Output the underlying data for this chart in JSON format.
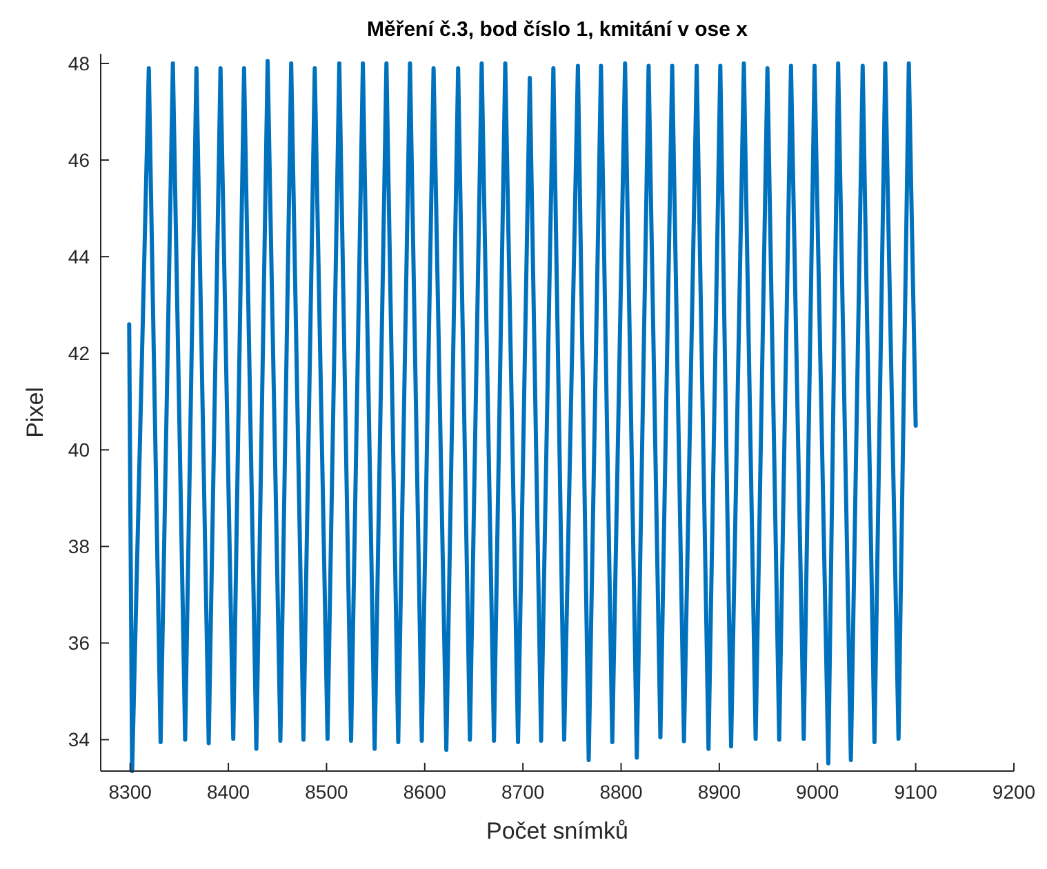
{
  "chart_data": {
    "type": "line",
    "title": "Měření č.3, bod číslo 1, kmitání v ose x",
    "xlabel": "Počet snímků",
    "ylabel": "Pixel",
    "x": [
      8299,
      8302,
      8319,
      8331,
      8343.5,
      8356,
      8367.5,
      8380,
      8392,
      8405,
      8416,
      8428.5,
      8440,
      8453,
      8464,
      8476.5,
      8488,
      8501,
      8513,
      8525,
      8537,
      8549,
      8561,
      8573,
      8585,
      8597,
      8609,
      8622,
      8634,
      8646,
      8658,
      8670.5,
      8682,
      8695,
      8707,
      8718.5,
      8731,
      8742,
      8756,
      8767,
      8779.5,
      8791,
      8804,
      8816,
      8828,
      8840,
      8852,
      8864,
      8877,
      8889,
      8901,
      8912,
      8925,
      8937,
      8949,
      8961,
      8973,
      8986,
      8997,
      9011,
      9021,
      9034,
      9046,
      9058,
      9069,
      9082.5,
      9093,
      9100
    ],
    "series": [
      {
        "color": "#0072bd",
        "values": [
          42.6,
          33.35,
          47.9,
          33.95,
          48.0,
          34.0,
          47.9,
          33.93,
          47.9,
          34.02,
          47.9,
          33.81,
          48.05,
          33.98,
          48.0,
          34.0,
          47.9,
          34.02,
          48.0,
          33.98,
          48.0,
          33.81,
          48.0,
          33.95,
          48.0,
          33.98,
          47.9,
          33.79,
          47.9,
          34.0,
          48.0,
          33.98,
          48.0,
          33.95,
          47.7,
          33.98,
          47.9,
          34.0,
          47.95,
          33.58,
          47.95,
          33.95,
          48.0,
          33.63,
          47.95,
          34.05,
          47.95,
          33.97,
          47.95,
          33.81,
          47.95,
          33.86,
          48.0,
          34.02,
          47.9,
          34.0,
          47.95,
          34.02,
          47.95,
          33.51,
          48.0,
          33.58,
          47.95,
          33.95,
          48.0,
          34.02,
          48.0,
          40.5
        ]
      }
    ],
    "xlim": [
      8270,
      9200
    ],
    "ylim": [
      33.35,
      48.2
    ],
    "xticks": [
      8300,
      8400,
      8500,
      8600,
      8700,
      8800,
      8900,
      9000,
      9100,
      9200
    ],
    "yticks": [
      34,
      36,
      38,
      40,
      42,
      44,
      46,
      48
    ],
    "grid": false,
    "marker": "none",
    "line_style": "solid"
  }
}
